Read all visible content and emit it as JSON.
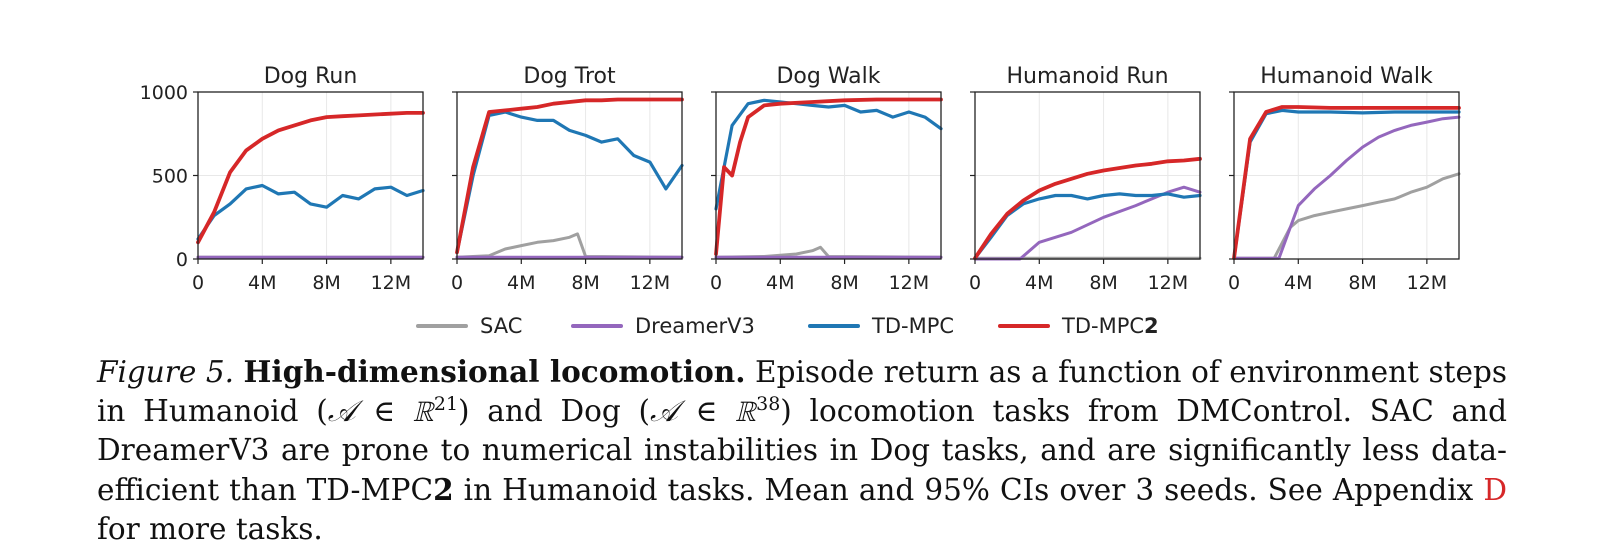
{
  "colors": {
    "SAC": "#a0a0a0",
    "DreamerV3": "#9467bd",
    "TD-MPC": "#1f77b4",
    "TD-MPC2": "#d62728"
  },
  "legend": {
    "placement": "bottom-center",
    "items": [
      {
        "name": "SAC",
        "color": "#a0a0a0"
      },
      {
        "name": "DreamerV3",
        "color": "#9467bd"
      },
      {
        "name": "TD-MPC",
        "color": "#1f77b4"
      },
      {
        "name_prefix": "TD-MPC",
        "name_suffix": "2",
        "color": "#d62728"
      }
    ]
  },
  "chart_data": [
    {
      "type": "line",
      "title": "Dog Run",
      "grid": true,
      "xlim": [
        0,
        14000000
      ],
      "ylim": [
        0,
        1000
      ],
      "xticks": [
        0,
        4000000,
        8000000,
        12000000
      ],
      "xtick_labels": [
        "0",
        "4M",
        "8M",
        "12M"
      ],
      "yticks": [
        0,
        500,
        1000
      ],
      "ytick_labels": [
        "0",
        "500",
        "1000"
      ],
      "series": [
        {
          "name": "SAC",
          "x": [
            0,
            14000000
          ],
          "y": [
            10,
            10
          ]
        },
        {
          "name": "DreamerV3",
          "x": [
            0,
            14000000
          ],
          "y": [
            10,
            10
          ]
        },
        {
          "name": "TD-MPC",
          "x": [
            0,
            1000000,
            2000000,
            3000000,
            4000000,
            5000000,
            6000000,
            7000000,
            8000000,
            9000000,
            10000000,
            11000000,
            12000000,
            13000000,
            14000000
          ],
          "y": [
            120,
            260,
            330,
            420,
            440,
            390,
            400,
            330,
            310,
            380,
            360,
            420,
            430,
            380,
            410
          ]
        },
        {
          "name": "TD-MPC2",
          "x": [
            0,
            1000000,
            2000000,
            3000000,
            4000000,
            5000000,
            6000000,
            7000000,
            8000000,
            9000000,
            10000000,
            11000000,
            12000000,
            13000000,
            14000000
          ],
          "y": [
            100,
            280,
            520,
            650,
            720,
            770,
            800,
            830,
            850,
            855,
            860,
            865,
            870,
            875,
            875
          ]
        }
      ]
    },
    {
      "type": "line",
      "title": "Dog Trot",
      "grid": true,
      "xlim": [
        0,
        14000000
      ],
      "ylim": [
        0,
        1000
      ],
      "xticks": [
        0,
        4000000,
        8000000,
        12000000
      ],
      "xtick_labels": [
        "0",
        "4M",
        "8M",
        "12M"
      ],
      "yticks": [
        0,
        500,
        1000
      ],
      "ytick_labels": [
        "0",
        "500",
        "1000"
      ],
      "series": [
        {
          "name": "SAC",
          "x": [
            0,
            2000000,
            3000000,
            4000000,
            5000000,
            6000000,
            7000000,
            7500000,
            8000000,
            14000000
          ],
          "y": [
            10,
            20,
            60,
            80,
            100,
            110,
            130,
            150,
            15,
            10
          ]
        },
        {
          "name": "DreamerV3",
          "x": [
            0,
            14000000
          ],
          "y": [
            10,
            10
          ]
        },
        {
          "name": "TD-MPC",
          "x": [
            0,
            1000000,
            2000000,
            3000000,
            4000000,
            5000000,
            6000000,
            7000000,
            8000000,
            9000000,
            10000000,
            11000000,
            12000000,
            13000000,
            14000000
          ],
          "y": [
            40,
            500,
            860,
            880,
            850,
            830,
            830,
            770,
            740,
            700,
            720,
            620,
            580,
            420,
            560
          ]
        },
        {
          "name": "TD-MPC2",
          "x": [
            0,
            1000000,
            2000000,
            3000000,
            4000000,
            5000000,
            6000000,
            7000000,
            8000000,
            9000000,
            10000000,
            11000000,
            12000000,
            13000000,
            14000000
          ],
          "y": [
            40,
            550,
            880,
            890,
            900,
            910,
            930,
            940,
            950,
            950,
            955,
            955,
            955,
            955,
            955
          ]
        }
      ]
    },
    {
      "type": "line",
      "title": "Dog Walk",
      "grid": true,
      "xlim": [
        0,
        14000000
      ],
      "ylim": [
        0,
        1000
      ],
      "xticks": [
        0,
        4000000,
        8000000,
        12000000
      ],
      "xtick_labels": [
        "0",
        "4M",
        "8M",
        "12M"
      ],
      "yticks": [
        0,
        500,
        1000
      ],
      "ytick_labels": [
        "0",
        "500",
        "1000"
      ],
      "series": [
        {
          "name": "SAC",
          "x": [
            0,
            3000000,
            5000000,
            6000000,
            6500000,
            7000000,
            14000000
          ],
          "y": [
            10,
            15,
            30,
            50,
            70,
            15,
            10
          ]
        },
        {
          "name": "DreamerV3",
          "x": [
            0,
            14000000
          ],
          "y": [
            10,
            10
          ]
        },
        {
          "name": "TD-MPC",
          "x": [
            0,
            1000000,
            2000000,
            3000000,
            4000000,
            5000000,
            6000000,
            7000000,
            8000000,
            9000000,
            10000000,
            11000000,
            12000000,
            13000000,
            14000000
          ],
          "y": [
            300,
            800,
            930,
            950,
            940,
            930,
            920,
            910,
            920,
            880,
            890,
            850,
            880,
            850,
            780
          ]
        },
        {
          "name": "TD-MPC2",
          "x": [
            0,
            500000,
            1000000,
            1500000,
            2000000,
            3000000,
            4000000,
            6000000,
            8000000,
            10000000,
            12000000,
            14000000
          ],
          "y": [
            30,
            550,
            500,
            700,
            850,
            920,
            930,
            940,
            950,
            955,
            955,
            955
          ]
        }
      ]
    },
    {
      "type": "line",
      "title": "Humanoid Run",
      "grid": true,
      "xlim": [
        0,
        14000000
      ],
      "ylim": [
        0,
        1000
      ],
      "xticks": [
        0,
        4000000,
        8000000,
        12000000
      ],
      "xtick_labels": [
        "0",
        "4M",
        "8M",
        "12M"
      ],
      "yticks": [
        0,
        500,
        1000
      ],
      "ytick_labels": [
        "0",
        "500",
        "1000"
      ],
      "series": [
        {
          "name": "SAC",
          "x": [
            0,
            14000000
          ],
          "y": [
            5,
            5
          ]
        },
        {
          "name": "DreamerV3",
          "x": [
            0,
            2800000,
            4000000,
            6000000,
            8000000,
            10000000,
            12000000,
            13000000,
            14000000
          ],
          "y": [
            0,
            0,
            100,
            160,
            250,
            320,
            400,
            430,
            400
          ]
        },
        {
          "name": "TD-MPC",
          "x": [
            0,
            1000000,
            2000000,
            3000000,
            4000000,
            5000000,
            6000000,
            7000000,
            8000000,
            9000000,
            10000000,
            11000000,
            12000000,
            13000000,
            14000000
          ],
          "y": [
            5,
            130,
            260,
            330,
            360,
            380,
            380,
            360,
            380,
            390,
            380,
            380,
            390,
            370,
            380
          ]
        },
        {
          "name": "TD-MPC2",
          "x": [
            0,
            1000000,
            2000000,
            3000000,
            4000000,
            5000000,
            6000000,
            7000000,
            8000000,
            9000000,
            10000000,
            11000000,
            12000000,
            13000000,
            14000000
          ],
          "y": [
            5,
            150,
            270,
            350,
            410,
            450,
            480,
            510,
            530,
            545,
            560,
            570,
            585,
            590,
            600
          ]
        }
      ]
    },
    {
      "type": "line",
      "title": "Humanoid Walk",
      "grid": true,
      "xlim": [
        0,
        14000000
      ],
      "ylim": [
        0,
        1000
      ],
      "xticks": [
        0,
        4000000,
        8000000,
        12000000
      ],
      "xtick_labels": [
        "0",
        "4M",
        "8M",
        "12M"
      ],
      "yticks": [
        0,
        500,
        1000
      ],
      "ytick_labels": [
        "0",
        "500",
        "1000"
      ],
      "series": [
        {
          "name": "SAC",
          "x": [
            0,
            2500000,
            3500000,
            4000000,
            5000000,
            6000000,
            7000000,
            8000000,
            9000000,
            10000000,
            11000000,
            12000000,
            13000000,
            14000000
          ],
          "y": [
            5,
            5,
            190,
            230,
            260,
            280,
            300,
            320,
            340,
            360,
            400,
            430,
            480,
            510
          ]
        },
        {
          "name": "DreamerV3",
          "x": [
            0,
            2800000,
            4000000,
            5000000,
            6000000,
            7000000,
            8000000,
            9000000,
            10000000,
            11000000,
            12000000,
            13000000,
            14000000
          ],
          "y": [
            5,
            5,
            320,
            420,
            500,
            590,
            670,
            730,
            770,
            800,
            820,
            840,
            850
          ]
        },
        {
          "name": "TD-MPC",
          "x": [
            0,
            1000000,
            2000000,
            3000000,
            4000000,
            6000000,
            8000000,
            10000000,
            12000000,
            14000000
          ],
          "y": [
            5,
            700,
            870,
            890,
            880,
            880,
            875,
            880,
            880,
            880
          ]
        },
        {
          "name": "TD-MPC2",
          "x": [
            0,
            1000000,
            2000000,
            3000000,
            4000000,
            6000000,
            8000000,
            10000000,
            12000000,
            14000000
          ],
          "y": [
            5,
            720,
            880,
            910,
            910,
            905,
            905,
            905,
            905,
            905
          ]
        }
      ]
    }
  ],
  "caption": {
    "label": "Figure 5.",
    "title": "High-dimensional locomotion.",
    "text_1": " Episode return as a function of environment steps in Humanoid (",
    "math_1": "𝒜 ∈ ℝ",
    "sup_1": "21",
    "text_2": ") and Dog (",
    "math_2": "𝒜 ∈ ℝ",
    "sup_2": "38",
    "text_3": ") locomotion tasks from DMControl. SAC and DreamerV3 are prone to numerical instabilities in Dog tasks, and are significantly less data-efficient than TD-MPC",
    "bold_2": "2",
    "text_4": " in Humanoid tasks. Mean and 95% CIs over 3 seeds. See Appendix ",
    "ref": "D",
    "text_5": " for more tasks."
  }
}
